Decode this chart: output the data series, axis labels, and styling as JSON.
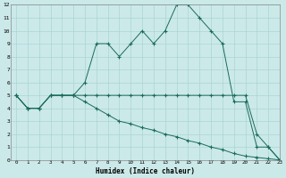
{
  "xlabel": "Humidex (Indice chaleur)",
  "bg_color": "#cbe9e9",
  "grid_color": "#aad4d4",
  "line_color": "#1a6b5a",
  "xlim": [
    -0.5,
    23
  ],
  "ylim": [
    0,
    12
  ],
  "xticks": [
    0,
    1,
    2,
    3,
    4,
    5,
    6,
    7,
    8,
    9,
    10,
    11,
    12,
    13,
    14,
    15,
    16,
    17,
    18,
    19,
    20,
    21,
    22,
    23
  ],
  "yticks": [
    0,
    1,
    2,
    3,
    4,
    5,
    6,
    7,
    8,
    9,
    10,
    11,
    12
  ],
  "series1_x": [
    0,
    1,
    2,
    3,
    4,
    5,
    6,
    7,
    8,
    9,
    10,
    11,
    12,
    13,
    14,
    15,
    16,
    17,
    18,
    19,
    20,
    21,
    22,
    23
  ],
  "series1_y": [
    5,
    4,
    4,
    5,
    5,
    5,
    6,
    9,
    9,
    8,
    9,
    10,
    9,
    10,
    12,
    12,
    11,
    10,
    9,
    4.5,
    4.5,
    1,
    1,
    0
  ],
  "series2_x": [
    0,
    1,
    2,
    3,
    4,
    5,
    6,
    7,
    8,
    9,
    10,
    11,
    12,
    13,
    14,
    15,
    16,
    17,
    18,
    19,
    20,
    21,
    22,
    23
  ],
  "series2_y": [
    5,
    4,
    4,
    5,
    5,
    5,
    5,
    5,
    5,
    5,
    5,
    5,
    5,
    5,
    5,
    5,
    5,
    5,
    5,
    5,
    5,
    2,
    1,
    0
  ],
  "series3_x": [
    0,
    1,
    2,
    3,
    4,
    5,
    6,
    7,
    8,
    9,
    10,
    11,
    12,
    13,
    14,
    15,
    16,
    17,
    18,
    19,
    20,
    21,
    22,
    23
  ],
  "series3_y": [
    5,
    4,
    4,
    5,
    5,
    5,
    4.5,
    4,
    3.5,
    3,
    2.8,
    2.5,
    2.3,
    2,
    1.8,
    1.5,
    1.3,
    1,
    0.8,
    0.5,
    0.3,
    0.2,
    0.1,
    0
  ]
}
